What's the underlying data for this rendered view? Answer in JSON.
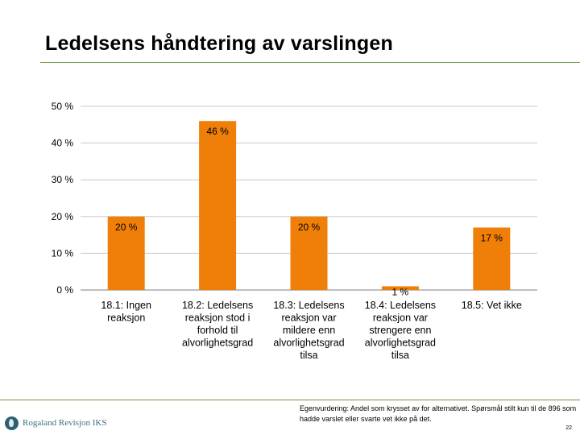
{
  "slide": {
    "title": "Ledelsens håndtering av varslingen",
    "footnote": "Egenvurdering: Andel som krysset av for alternativet. Spørsmål stilt kun til de 896 som hadde varslet eller svarte vet ikke på det.",
    "page_number": "22",
    "logo_text": "Rogaland Revisjon IKS"
  },
  "colors": {
    "bar": "#f07f09",
    "grid": "#c8c8c8",
    "axis": "#7f7f7f",
    "rule": "#6d9a45"
  },
  "chart_data": {
    "type": "bar",
    "categories": [
      [
        "18.1: Ingen",
        "reaksjon"
      ],
      [
        "18.2: Ledelsens",
        "reaksjon stod i",
        "forhold til",
        "alvorlighetsgrad"
      ],
      [
        "18.3: Ledelsens",
        "reaksjon var",
        "mildere enn",
        "alvorlighetsgrad",
        "tilsa"
      ],
      [
        "18.4: Ledelsens",
        "reaksjon var",
        "strengere enn",
        "alvorlighetsgrad",
        "tilsa"
      ],
      [
        "18.5: Vet ikke"
      ]
    ],
    "values": [
      20,
      46,
      20,
      1,
      17
    ],
    "data_labels": [
      "20 %",
      "46 %",
      "20 %",
      "1 %",
      "17 %"
    ],
    "y_ticks": [
      0,
      10,
      20,
      30,
      40,
      50
    ],
    "y_tick_labels": [
      "0 %",
      "10 %",
      "20 %",
      "30 %",
      "40 %",
      "50 %"
    ],
    "ylim": [
      0,
      50
    ],
    "grid": true,
    "legend": "none"
  }
}
